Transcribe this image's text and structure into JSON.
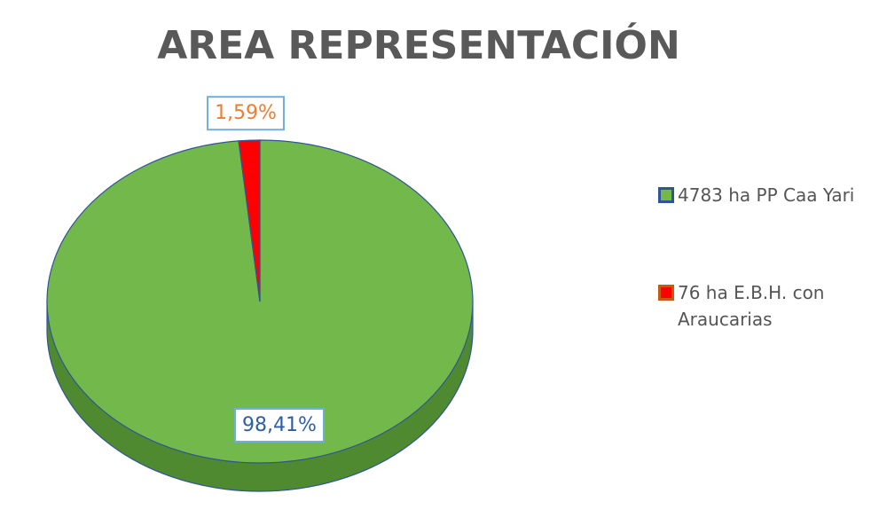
{
  "chart_data": {
    "type": "pie",
    "title": "AREA REPRESENTACIÓN",
    "categories": [
      "4783 ha PP Caa Yari",
      "76 ha E.B.H. con Araucarias"
    ],
    "values": [
      98.41,
      1.59
    ],
    "value_labels": [
      "98,41%",
      "1,59%"
    ],
    "colors": [
      "#72b84b",
      "#ff0000"
    ],
    "legend_marker_borders": [
      "#2f5597",
      "#c55a11"
    ],
    "label_colors": [
      "#2e5fa3",
      "#ed7d31"
    ],
    "legend": "right"
  }
}
